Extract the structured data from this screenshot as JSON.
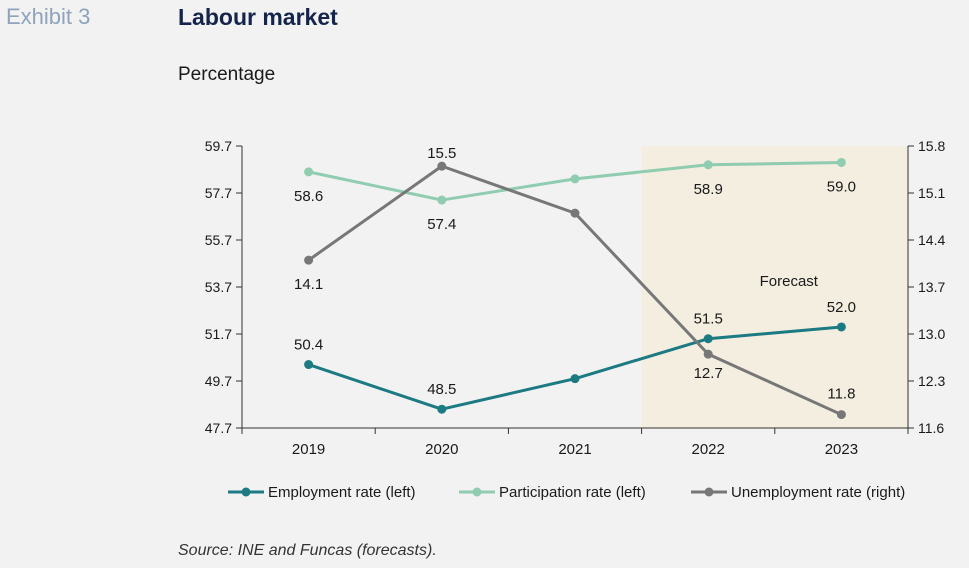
{
  "header": {
    "exhibit": "Exhibit 3",
    "title": "Labour market",
    "subtitle": "Percentage"
  },
  "footer": {
    "source": "Source: INE and Funcas (forecasts)."
  },
  "chart_data": {
    "type": "line",
    "categories": [
      "2019",
      "2020",
      "2021",
      "2022",
      "2023"
    ],
    "forecast_label": "Forecast",
    "forecast_categories": [
      "2022",
      "2023"
    ],
    "y_left": {
      "min": 47.7,
      "max": 59.7,
      "ticks": [
        "47.7",
        "49.7",
        "51.7",
        "53.7",
        "55.7",
        "57.7",
        "59.7"
      ]
    },
    "y_right": {
      "min": 11.6,
      "max": 15.8,
      "ticks": [
        "11.6",
        "12.3",
        "13.0",
        "13.7",
        "14.4",
        "15.1",
        "15.8"
      ]
    },
    "series": [
      {
        "name": "Employment rate (left)",
        "axis": "left",
        "color": "#1c7a82",
        "values": [
          50.4,
          48.5,
          49.8,
          51.5,
          52.0
        ],
        "labels": [
          "50.4",
          "48.5",
          null,
          "51.5",
          "52.0"
        ]
      },
      {
        "name": "Participation rate (left)",
        "axis": "left",
        "color": "#8fccb0",
        "values": [
          58.6,
          57.4,
          58.3,
          58.9,
          59.0
        ],
        "labels": [
          "58.6",
          "57.4",
          null,
          "58.9",
          "59.0"
        ]
      },
      {
        "name": "Unemployment rate (right)",
        "axis": "right",
        "color": "#777777",
        "values": [
          14.1,
          15.5,
          14.8,
          12.7,
          11.8
        ],
        "labels": [
          "14.1",
          "15.5",
          null,
          "12.7",
          "11.8"
        ]
      }
    ],
    "legend_position": "bottom",
    "grid": false
  }
}
